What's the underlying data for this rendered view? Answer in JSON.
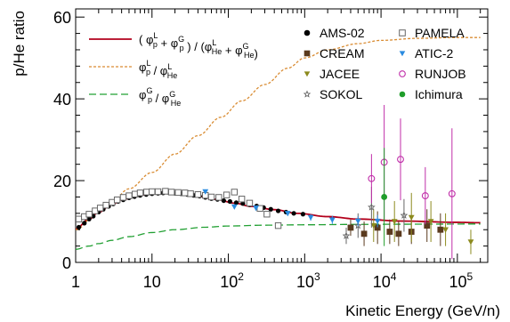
{
  "chart_data": {
    "type": "scatter",
    "ylabel": "p/He ratio",
    "xlabel": "Kinetic Energy (GeV/n)",
    "xscale": "log",
    "xlim": [
      1,
      250000
    ],
    "ylim": [
      0,
      62
    ],
    "yticks": [
      0,
      20,
      40,
      60
    ],
    "xticks": [
      {
        "value": 1,
        "label": "1"
      },
      {
        "value": 10,
        "label": "10",
        "exp": ""
      },
      {
        "value": 100,
        "label": "10",
        "exp": "2"
      },
      {
        "value": 1000,
        "label": "10",
        "exp": "3"
      },
      {
        "value": 10000,
        "label": "10",
        "exp": "4"
      },
      {
        "value": 100000,
        "label": "10",
        "exp": "5"
      }
    ],
    "grid": false,
    "legend_placement": "top",
    "curves": [
      {
        "legend": {
          "pre": "( φ",
          "sup1": "L",
          "sub1": "p",
          "mid": " + φ",
          "sup2": "G",
          "sub2": "p",
          "mid2": " ) / (φ",
          "sup3": "L",
          "sub3": "He",
          "mid3": " + φ",
          "sup4": "G",
          "sub4": "He",
          "post": ")"
        },
        "color": "#b3001b",
        "dash": "solid",
        "points": [
          [
            1,
            8.2
          ],
          [
            1.5,
            10.6
          ],
          [
            2,
            12.3
          ],
          [
            3,
            14.2
          ],
          [
            4,
            15.3
          ],
          [
            6,
            16.2
          ],
          [
            10,
            16.8
          ],
          [
            15,
            17.0
          ],
          [
            25,
            16.8
          ],
          [
            40,
            16.2
          ],
          [
            70,
            15.4
          ],
          [
            120,
            14.5
          ],
          [
            200,
            13.7
          ],
          [
            400,
            12.9
          ],
          [
            800,
            12.0
          ],
          [
            2000,
            11.2
          ],
          [
            5000,
            10.6
          ],
          [
            20000,
            10.1
          ],
          [
            100000,
            9.8
          ],
          [
            200000,
            9.7
          ]
        ]
      },
      {
        "legend": {
          "pre": "φ",
          "sup1": "L",
          "sub1": "p",
          "mid": " / φ",
          "sup2": "L",
          "sub2": "He"
        },
        "color": "#d98c33",
        "dash": "3,2",
        "points": [
          [
            1,
            8.0
          ],
          [
            2,
            12.5
          ],
          [
            3,
            15.0
          ],
          [
            5,
            18.0
          ],
          [
            10,
            22.0
          ],
          [
            20,
            26.5
          ],
          [
            40,
            31.0
          ],
          [
            80,
            35.5
          ],
          [
            150,
            39.5
          ],
          [
            300,
            43.5
          ],
          [
            600,
            47.5
          ],
          [
            1000,
            50.0
          ],
          [
            2000,
            52.0
          ],
          [
            5000,
            53.5
          ],
          [
            10000,
            54.3
          ],
          [
            30000,
            54.8
          ],
          [
            100000,
            55.0
          ],
          [
            200000,
            55.0
          ]
        ]
      },
      {
        "legend": {
          "pre": "φ",
          "sup1": "G",
          "sub1": "p",
          "mid": " / φ",
          "sup2": "G",
          "sub2": "He"
        },
        "color": "#22a033",
        "dash": "8,4",
        "points": [
          [
            1,
            3.2
          ],
          [
            1.5,
            4.0
          ],
          [
            2,
            4.6
          ],
          [
            3,
            5.4
          ],
          [
            5,
            6.3
          ],
          [
            10,
            7.3
          ],
          [
            20,
            8.0
          ],
          [
            50,
            8.6
          ],
          [
            100,
            8.9
          ],
          [
            300,
            9.1
          ],
          [
            1000,
            9.2
          ],
          [
            5000,
            9.3
          ],
          [
            30000,
            9.35
          ],
          [
            200000,
            9.4
          ]
        ]
      }
    ],
    "series": [
      {
        "name": "AMS-02",
        "marker": "circle-filled",
        "color": "#000000",
        "points": [
          [
            1.1,
            8.6
          ],
          [
            1.3,
            9.6
          ],
          [
            1.5,
            10.6
          ],
          [
            1.7,
            11.3
          ],
          [
            2.0,
            12.3
          ],
          [
            2.3,
            13.0
          ],
          [
            2.7,
            13.7
          ],
          [
            3.1,
            14.3
          ],
          [
            3.6,
            14.9
          ],
          [
            4.2,
            15.3
          ],
          [
            5.0,
            15.8
          ],
          [
            5.9,
            16.1
          ],
          [
            7,
            16.4
          ],
          [
            8.4,
            16.6
          ],
          [
            10,
            16.8
          ],
          [
            12,
            16.9
          ],
          [
            14,
            17.0
          ],
          [
            17,
            17.0
          ],
          [
            20,
            16.9
          ],
          [
            24,
            16.8
          ],
          [
            29,
            16.6
          ],
          [
            35,
            16.4
          ],
          [
            42,
            16.2
          ],
          [
            50,
            15.9
          ],
          [
            60,
            15.6
          ],
          [
            72,
            15.4
          ],
          [
            87,
            15.1
          ],
          [
            105,
            14.9
          ],
          [
            127,
            14.6
          ],
          [
            155,
            14.4
          ],
          [
            190,
            14.1
          ],
          [
            235,
            13.8
          ],
          [
            290,
            13.4
          ],
          [
            360,
            13.0
          ],
          [
            450,
            12.6
          ],
          [
            570,
            12.3
          ],
          [
            720,
            12.0
          ],
          [
            950,
            11.8
          ]
        ]
      },
      {
        "name": "CREAM",
        "marker": "square-filled",
        "color": "#5a3a1e",
        "points": [
          [
            4000,
            8.5
          ],
          [
            6000,
            7.0
          ],
          [
            9000,
            8.5
          ],
          [
            13000,
            7.5
          ],
          [
            17000,
            7.0
          ],
          [
            25000,
            7.5
          ],
          [
            40000,
            9.0
          ],
          [
            60000,
            8.0
          ]
        ]
      },
      {
        "name": "JACEE",
        "marker": "triangle-down",
        "color": "#8c8a1e",
        "points": [
          [
            8000,
            9.0
          ],
          [
            15000,
            10.0
          ],
          [
            25000,
            11.0
          ],
          [
            45000,
            10.0
          ],
          [
            70000,
            8.0
          ],
          [
            150000,
            5.0
          ]
        ]
      },
      {
        "name": "SOKOL",
        "marker": "star-open",
        "color": "#666666",
        "points": [
          [
            3500,
            6.5
          ],
          [
            5000,
            9.0
          ],
          [
            7500,
            13.5
          ],
          [
            20000,
            11.5
          ]
        ]
      },
      {
        "name": "PAMELA",
        "marker": "square-open",
        "color": "#666666",
        "points": [
          [
            1.1,
            10.6
          ],
          [
            1.3,
            11.2
          ],
          [
            1.5,
            11.8
          ],
          [
            1.8,
            12.6
          ],
          [
            2.1,
            13.3
          ],
          [
            2.5,
            14.0
          ],
          [
            3,
            14.7
          ],
          [
            3.5,
            15.3
          ],
          [
            4.2,
            15.9
          ],
          [
            5,
            16.3
          ],
          [
            6,
            16.7
          ],
          [
            7,
            17.0
          ],
          [
            8.5,
            17.2
          ],
          [
            10,
            17.3
          ],
          [
            12,
            17.3
          ],
          [
            15,
            17.4
          ],
          [
            18,
            17.2
          ],
          [
            22,
            17.1
          ],
          [
            27,
            17.0
          ],
          [
            32,
            16.8
          ],
          [
            40,
            16.6
          ],
          [
            50,
            16.4
          ],
          [
            60,
            16.0
          ],
          [
            75,
            15.9
          ],
          [
            95,
            16.5
          ],
          [
            120,
            17.2
          ],
          [
            150,
            15.5
          ],
          [
            190,
            14.5
          ],
          [
            260,
            13.2
          ],
          [
            320,
            11.8
          ],
          [
            450,
            9.0
          ]
        ]
      },
      {
        "name": "ATIC-2",
        "marker": "triangle-down-filled",
        "color": "#2a8be0",
        "points": [
          [
            50,
            17.3
          ],
          [
            120,
            13.6
          ],
          [
            230,
            13.3
          ],
          [
            600,
            12.0
          ],
          [
            1200,
            11.0
          ],
          [
            2300,
            10.4
          ],
          [
            5000,
            10.1
          ],
          [
            9000,
            10.1
          ]
        ]
      },
      {
        "name": "RUNJOB",
        "marker": "circle-open",
        "color": "#c02ea9",
        "points": [
          [
            7500,
            20.5
          ],
          [
            11000,
            24.5
          ],
          [
            18000,
            25.2
          ],
          [
            38000,
            16.3
          ],
          [
            85000,
            16.8
          ]
        ]
      },
      {
        "name": "Ichimura",
        "marker": "circle-filled",
        "color": "#1f9d2a",
        "points": [
          [
            11000,
            16.0
          ]
        ]
      }
    ]
  }
}
